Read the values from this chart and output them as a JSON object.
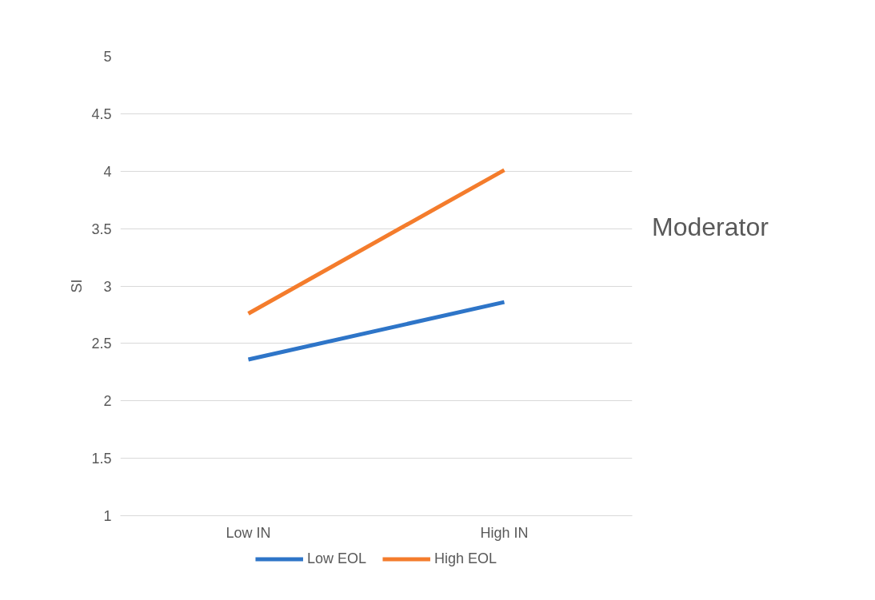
{
  "chart_data": {
    "type": "line",
    "ylabel": "SI",
    "categories": [
      "Low IN",
      "High IN"
    ],
    "series": [
      {
        "name": "Low EOL",
        "color": "#2e75c8",
        "values": [
          2.36,
          2.86
        ]
      },
      {
        "name": "High EOL",
        "color": "#f47c2c",
        "values": [
          2.76,
          4.01
        ]
      }
    ],
    "ylim": [
      1,
      5
    ],
    "yticks": [
      1,
      1.5,
      2,
      2.5,
      3,
      3.5,
      4,
      4.5,
      5
    ],
    "grid": "y",
    "legend": "bottom",
    "marker": "none",
    "line_style": "solid",
    "annotations": [
      "Moderator"
    ]
  }
}
